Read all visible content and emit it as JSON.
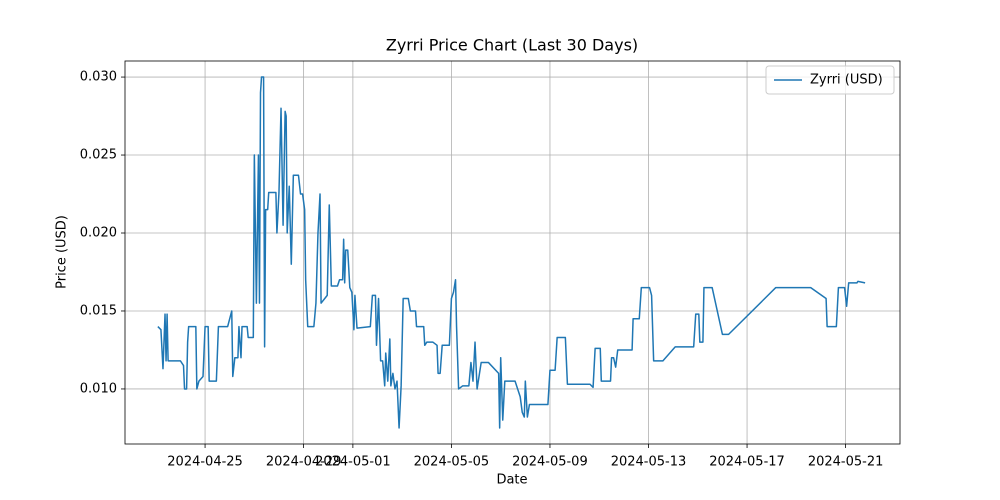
{
  "chart_data": {
    "type": "line",
    "title": "Zyrri Price Chart (Last 30 Days)",
    "xlabel": "Date",
    "ylabel": "Price (USD)",
    "x": [
      "2024-04-23 02:00",
      "2024-04-23 05:00",
      "2024-04-23 07:00",
      "2024-04-23 09:00",
      "2024-04-23 10:00",
      "2024-04-23 11:00",
      "2024-04-23 12:00",
      "2024-04-24 00:00",
      "2024-04-24 03:00",
      "2024-04-24 04:00",
      "2024-04-24 06:00",
      "2024-04-24 07:00",
      "2024-04-24 08:00",
      "2024-04-24 15:00",
      "2024-04-24 16:00",
      "2024-04-24 18:00",
      "2024-04-24 22:00",
      "2024-04-25 00:00",
      "2024-04-25 03:00",
      "2024-04-25 04:00",
      "2024-04-25 11:00",
      "2024-04-25 13:00",
      "2024-04-25 22:00",
      "2024-04-26 02:00",
      "2024-04-26 03:00",
      "2024-04-26 05:00",
      "2024-04-26 08:00",
      "2024-04-26 09:00",
      "2024-04-26 11:00",
      "2024-04-26 12:00",
      "2024-04-26 17:00",
      "2024-04-26 18:00",
      "2024-04-26 23:00",
      "2024-04-27 00:00",
      "2024-04-27 02:00",
      "2024-04-27 04:00",
      "2024-04-27 05:00",
      "2024-04-27 06:00",
      "2024-04-27 07:00",
      "2024-04-27 09:00",
      "2024-04-27 10:00",
      "2024-04-27 11:00",
      "2024-04-27 13:00",
      "2024-04-27 14:00",
      "2024-04-27 21:00",
      "2024-04-27 22:00",
      "2024-04-28 00:00",
      "2024-04-28 02:00",
      "2024-04-28 04:00",
      "2024-04-28 06:00",
      "2024-04-28 07:00",
      "2024-04-28 08:00",
      "2024-04-28 10:00",
      "2024-04-28 12:00",
      "2024-04-28 14:00",
      "2024-04-28 19:00",
      "2024-04-28 21:00",
      "2024-04-28 23:00",
      "2024-04-29 01:00",
      "2024-04-29 02:00",
      "2024-04-29 04:00",
      "2024-04-29 10:00",
      "2024-04-29 12:00",
      "2024-04-29 14:00",
      "2024-04-29 16:00",
      "2024-04-29 17:00",
      "2024-04-29 23:00",
      "2024-04-30 01:00",
      "2024-04-30 03:00",
      "2024-04-30 09:00",
      "2024-04-30 11:00",
      "2024-04-30 14:00",
      "2024-04-30 15:00",
      "2024-04-30 16:00",
      "2024-04-30 17:00",
      "2024-04-30 19:00",
      "2024-04-30 21:00",
      "2024-04-30 23:00",
      "2024-05-01 01:00",
      "2024-05-01 02:00",
      "2024-05-01 04:00",
      "2024-05-01 17:00",
      "2024-05-01 19:00",
      "2024-05-01 22:00",
      "2024-05-01 23:00",
      "2024-05-02 01:00",
      "2024-05-02 03:00",
      "2024-05-02 05:00",
      "2024-05-02 07:00",
      "2024-05-02 08:00",
      "2024-05-02 10:00",
      "2024-05-02 12:00",
      "2024-05-02 13:00",
      "2024-05-02 15:00",
      "2024-05-02 17:00",
      "2024-05-02 19:00",
      "2024-05-02 21:00",
      "2024-05-02 23:00",
      "2024-05-03 01:00",
      "2024-05-03 06:00",
      "2024-05-03 08:00",
      "2024-05-03 13:00",
      "2024-05-03 14:00",
      "2024-05-03 21:00",
      "2024-05-03 22:00",
      "2024-05-04 00:00",
      "2024-05-04 06:00",
      "2024-05-04 10:00",
      "2024-05-04 11:00",
      "2024-05-04 13:00",
      "2024-05-04 15:00",
      "2024-05-04 22:00",
      "2024-05-05 00:00",
      "2024-05-05 02:00",
      "2024-05-05 04:00",
      "2024-05-05 05:00",
      "2024-05-05 07:00",
      "2024-05-05 11:00",
      "2024-05-05 17:00",
      "2024-05-05 19:00",
      "2024-05-05 21:00",
      "2024-05-05 23:00",
      "2024-05-06 01:00",
      "2024-05-06 05:00",
      "2024-05-06 12:00",
      "2024-05-06 22:00",
      "2024-05-06 23:00",
      "2024-05-07 00:00",
      "2024-05-07 02:00",
      "2024-05-07 04:00",
      "2024-05-07 14:00",
      "2024-05-07 19:00",
      "2024-05-07 21:00",
      "2024-05-07 23:00",
      "2024-05-08 00:00",
      "2024-05-08 02:00",
      "2024-05-08 04:00",
      "2024-05-08 22:00",
      "2024-05-09 00:00",
      "2024-05-09 05:00",
      "2024-05-09 07:00",
      "2024-05-09 15:00",
      "2024-05-09 17:00",
      "2024-05-10 15:00",
      "2024-05-10 18:00",
      "2024-05-10 20:00",
      "2024-05-11 01:00",
      "2024-05-11 02:00",
      "2024-05-11 11:00",
      "2024-05-11 12:00",
      "2024-05-11 14:00",
      "2024-05-11 16:00",
      "2024-05-11 18:00",
      "2024-05-12 08:00",
      "2024-05-12 09:00",
      "2024-05-12 15:00",
      "2024-05-12 17:00",
      "2024-05-13 01:00",
      "2024-05-13 03:00",
      "2024-05-13 05:00",
      "2024-05-13 14:00",
      "2024-05-14 02:00",
      "2024-05-14 20:00",
      "2024-05-14 22:00",
      "2024-05-15 01:00",
      "2024-05-15 02:00",
      "2024-05-15 05:00",
      "2024-05-15 06:00",
      "2024-05-15 14:00",
      "2024-05-16 00:00",
      "2024-05-16 06:00",
      "2024-05-18 04:00",
      "2024-05-19 14:00",
      "2024-05-20 05:00",
      "2024-05-20 06:00",
      "2024-05-20 15:00",
      "2024-05-20 17:00",
      "2024-05-20 23:00",
      "2024-05-21 01:00",
      "2024-05-21 03:00",
      "2024-05-21 11:00",
      "2024-05-21 12:00",
      "2024-05-21 19:00"
    ],
    "series": [
      {
        "name": "Zyrri (USD)",
        "color": "#1f77b4",
        "values": [
          0.014,
          0.0138,
          0.0113,
          0.0148,
          0.0118,
          0.0148,
          0.0118,
          0.0118,
          0.0115,
          0.01,
          0.01,
          0.013,
          0.014,
          0.014,
          0.01,
          0.0105,
          0.0108,
          0.014,
          0.014,
          0.0105,
          0.0105,
          0.014,
          0.014,
          0.015,
          0.0108,
          0.012,
          0.012,
          0.014,
          0.012,
          0.014,
          0.014,
          0.0133,
          0.0133,
          0.025,
          0.0155,
          0.025,
          0.0155,
          0.029,
          0.03,
          0.03,
          0.0127,
          0.0215,
          0.0215,
          0.0226,
          0.0226,
          0.02,
          0.0226,
          0.028,
          0.0205,
          0.0278,
          0.0275,
          0.02,
          0.023,
          0.018,
          0.0237,
          0.0237,
          0.0225,
          0.0225,
          0.0215,
          0.017,
          0.014,
          0.014,
          0.0155,
          0.02,
          0.0225,
          0.0155,
          0.016,
          0.0218,
          0.0166,
          0.0166,
          0.017,
          0.017,
          0.0196,
          0.0168,
          0.0189,
          0.0189,
          0.0165,
          0.0162,
          0.0138,
          0.016,
          0.0139,
          0.014,
          0.016,
          0.016,
          0.0128,
          0.0158,
          0.0118,
          0.0118,
          0.0102,
          0.0123,
          0.0105,
          0.0132,
          0.0102,
          0.011,
          0.01,
          0.0105,
          0.0075,
          0.0102,
          0.0158,
          0.0158,
          0.015,
          0.015,
          0.014,
          0.014,
          0.0128,
          0.013,
          0.013,
          0.0128,
          0.011,
          0.011,
          0.0128,
          0.0128,
          0.0158,
          0.0162,
          0.017,
          0.014,
          0.01,
          0.0102,
          0.0102,
          0.0117,
          0.0105,
          0.013,
          0.01,
          0.0117,
          0.0117,
          0.011,
          0.0075,
          0.012,
          0.008,
          0.0105,
          0.0105,
          0.0095,
          0.0085,
          0.0082,
          0.0105,
          0.0082,
          0.009,
          0.009,
          0.0112,
          0.0112,
          0.0133,
          0.0133,
          0.0103,
          0.0103,
          0.0101,
          0.0126,
          0.0126,
          0.0105,
          0.0105,
          0.012,
          0.012,
          0.0114,
          0.0125,
          0.0125,
          0.0145,
          0.0145,
          0.0165,
          0.0165,
          0.016,
          0.0118,
          0.0118,
          0.0127,
          0.0127,
          0.0148,
          0.0148,
          0.013,
          0.013,
          0.0165,
          0.0165,
          0.0135,
          0.0135,
          0.0165,
          0.0165,
          0.0158,
          0.014,
          0.014,
          0.0165,
          0.0165,
          0.0153,
          0.0168,
          0.0168,
          0.0169,
          0.0168
        ]
      }
    ],
    "xlim": [
      "2024-04-21 18:00",
      "2024-05-23 05:00"
    ],
    "xticks": [
      "2024-04-25",
      "2024-04-29",
      "2024-05-01",
      "2024-05-05",
      "2024-05-09",
      "2024-05-13",
      "2024-05-17",
      "2024-05-21"
    ],
    "ylim": [
      0.00647,
      0.03103
    ],
    "yticks": [
      {
        "value": 0.01,
        "label": "0.010"
      },
      0.015,
      {
        "value": 0.02,
        "label": "0.020"
      },
      0.025,
      {
        "value": 0.03,
        "label": "0.030"
      }
    ],
    "grid": true,
    "legend": "upper right"
  }
}
